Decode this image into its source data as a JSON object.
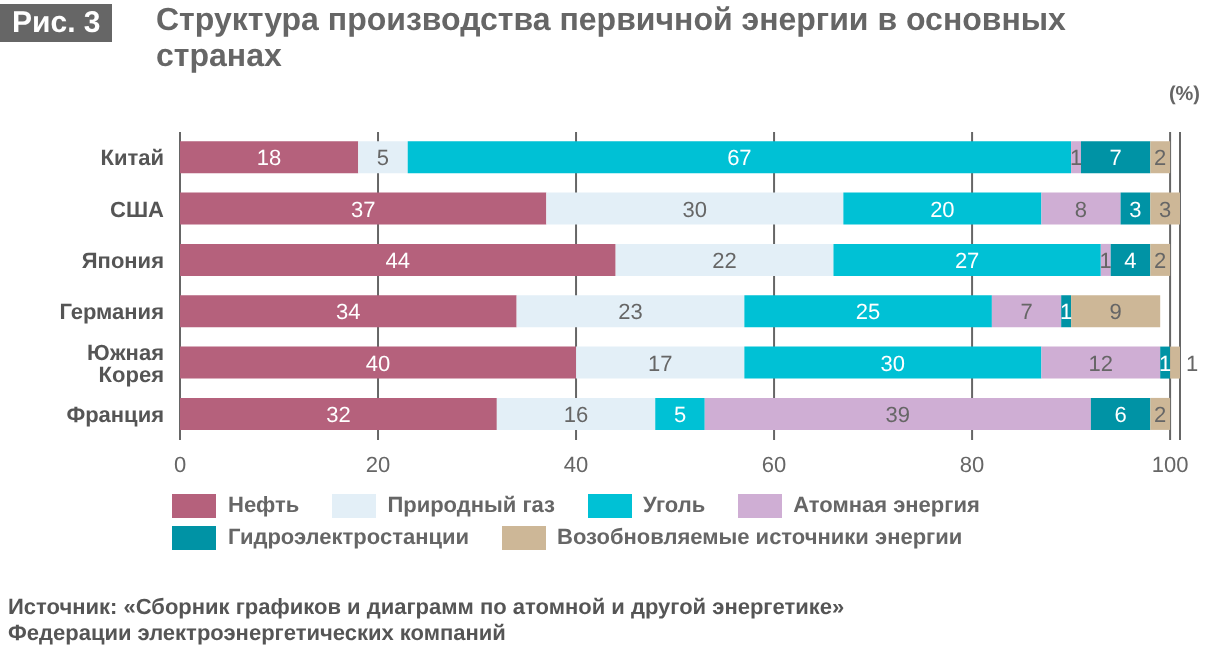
{
  "chart_data": {
    "type": "bar",
    "orientation": "horizontal",
    "stacked": true,
    "title": "Структура производства первичной энергии в основных странах",
    "subtitle": "Рис. 3",
    "xlabel": "(%)",
    "categories": [
      "Китай",
      "США",
      "Япония",
      "Германия",
      "Южная Корея",
      "Франция"
    ],
    "series": [
      {
        "name": "Нефть",
        "color": "#b5617c",
        "values": [
          18,
          37,
          44,
          34,
          40,
          32
        ]
      },
      {
        "name": "Природный газ",
        "color": "#e3eff7",
        "values": [
          5,
          30,
          22,
          23,
          17,
          16
        ]
      },
      {
        "name": "Уголь",
        "color": "#00c1d5",
        "values": [
          67,
          20,
          27,
          25,
          30,
          5
        ]
      },
      {
        "name": "Атомная энергия",
        "color": "#cfaed4",
        "values": [
          1,
          8,
          1,
          7,
          12,
          39
        ]
      },
      {
        "name": "Гидроэлектростанции",
        "color": "#0093a5",
        "values": [
          7,
          3,
          4,
          1,
          1,
          6
        ]
      },
      {
        "name": "Возобновляемые источники энергии",
        "color": "#cdb797",
        "values": [
          2,
          3,
          2,
          9,
          1,
          2
        ]
      }
    ],
    "xlim": [
      0,
      101
    ],
    "xticks": [
      0,
      20,
      40,
      60,
      80,
      100
    ],
    "grid": "x",
    "legend": "bottom",
    "data_labels": true,
    "annotations": [
      "Источник: «Сборник графиков и диаграмм по атомной и другой энергетике»",
      "Федерации электроэнергетических компаний"
    ]
  }
}
